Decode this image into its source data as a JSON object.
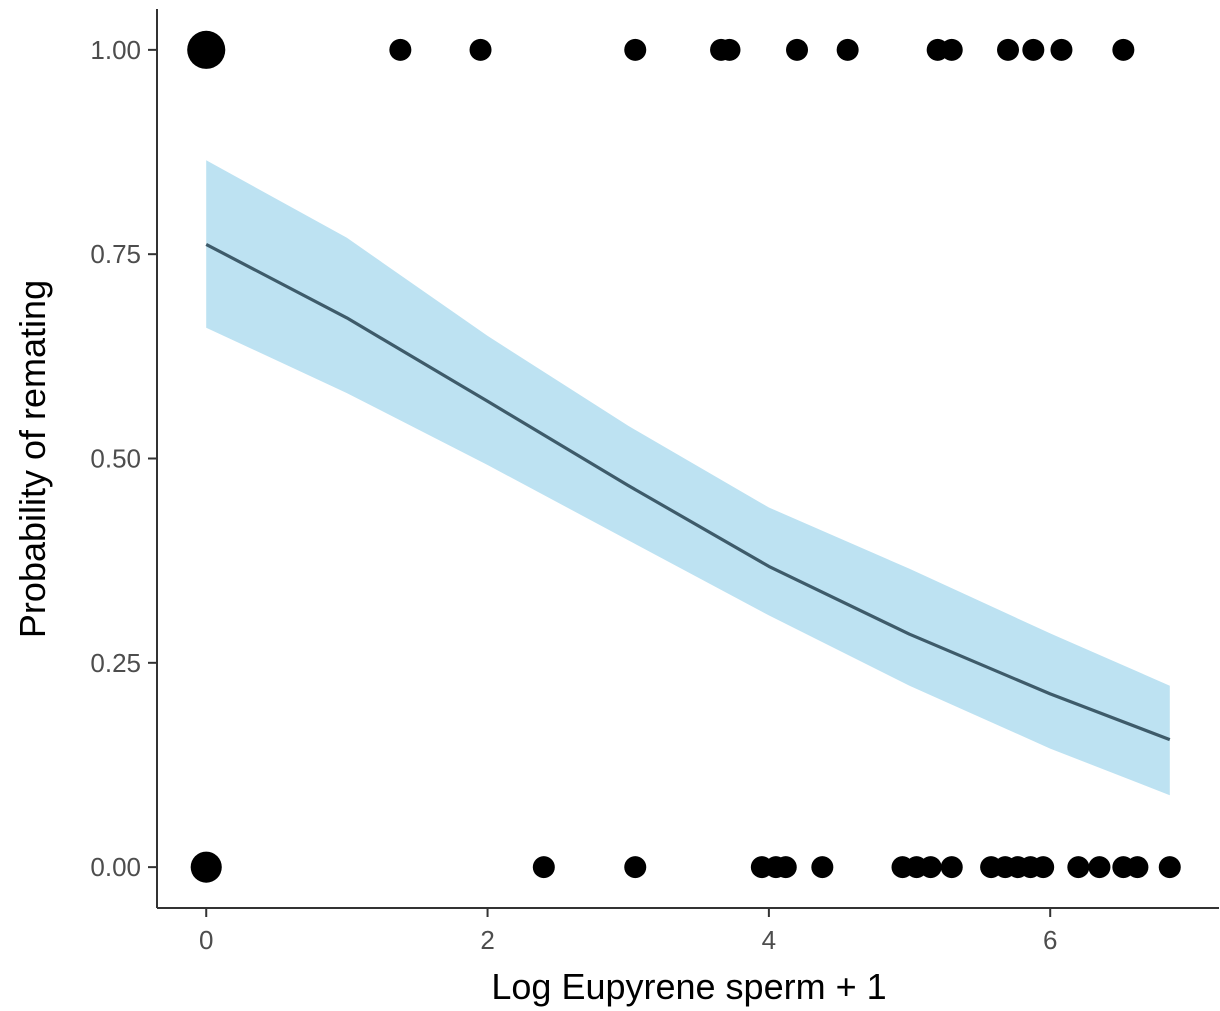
{
  "chart_data": {
    "type": "scatter",
    "title": "",
    "xlabel": "Log Eupyrene sperm + 1",
    "ylabel": "Probability of remating",
    "xlim": [
      -0.35,
      7.2
    ],
    "ylim": [
      -0.05,
      1.05
    ],
    "x_ticks": [
      0,
      2,
      4,
      6
    ],
    "x_tick_labels": [
      "0",
      "2",
      "4",
      "6"
    ],
    "y_ticks": [
      0,
      0.25,
      0.5,
      0.75,
      1
    ],
    "y_tick_labels": [
      "0.00",
      "0.25",
      "0.50",
      "0.75",
      "1.00"
    ],
    "grid": false,
    "legend": "none",
    "colors": {
      "points": "#000000",
      "ribbon": "#bde2f2",
      "line": "#3e5b6a",
      "axis": "#333333"
    },
    "points_remated": [
      {
        "x": 0,
        "y": 1,
        "n": 3
      },
      {
        "x": 1.38,
        "y": 1,
        "n": 1
      },
      {
        "x": 1.95,
        "y": 1,
        "n": 1
      },
      {
        "x": 3.05,
        "y": 1,
        "n": 1
      },
      {
        "x": 3.66,
        "y": 1,
        "n": 1
      },
      {
        "x": 3.72,
        "y": 1,
        "n": 1
      },
      {
        "x": 4.2,
        "y": 1,
        "n": 1
      },
      {
        "x": 4.56,
        "y": 1,
        "n": 1
      },
      {
        "x": 5.2,
        "y": 1,
        "n": 1
      },
      {
        "x": 5.3,
        "y": 1,
        "n": 1
      },
      {
        "x": 5.7,
        "y": 1,
        "n": 1
      },
      {
        "x": 5.88,
        "y": 1,
        "n": 1
      },
      {
        "x": 6.08,
        "y": 1,
        "n": 1
      },
      {
        "x": 6.52,
        "y": 1,
        "n": 1
      }
    ],
    "points_not_remated": [
      {
        "x": 0,
        "y": 0,
        "n": 2
      },
      {
        "x": 2.4,
        "y": 0,
        "n": 1
      },
      {
        "x": 3.05,
        "y": 0,
        "n": 1
      },
      {
        "x": 3.95,
        "y": 0,
        "n": 1
      },
      {
        "x": 4.05,
        "y": 0,
        "n": 1
      },
      {
        "x": 4.12,
        "y": 0,
        "n": 1
      },
      {
        "x": 4.38,
        "y": 0,
        "n": 1
      },
      {
        "x": 4.95,
        "y": 0,
        "n": 1
      },
      {
        "x": 5.05,
        "y": 0,
        "n": 1
      },
      {
        "x": 5.15,
        "y": 0,
        "n": 1
      },
      {
        "x": 5.3,
        "y": 0,
        "n": 1
      },
      {
        "x": 5.58,
        "y": 0,
        "n": 1
      },
      {
        "x": 5.68,
        "y": 0,
        "n": 1
      },
      {
        "x": 5.77,
        "y": 0,
        "n": 1
      },
      {
        "x": 5.86,
        "y": 0,
        "n": 1
      },
      {
        "x": 5.95,
        "y": 0,
        "n": 1
      },
      {
        "x": 6.2,
        "y": 0,
        "n": 1
      },
      {
        "x": 6.35,
        "y": 0,
        "n": 1
      },
      {
        "x": 6.52,
        "y": 0,
        "n": 1
      },
      {
        "x": 6.62,
        "y": 0,
        "n": 1
      },
      {
        "x": 6.85,
        "y": 0,
        "n": 1
      }
    ],
    "fit": {
      "x": [
        0,
        1,
        2,
        3,
        4,
        5,
        6,
        6.85
      ],
      "y": [
        0.762,
        0.672,
        0.57,
        0.467,
        0.368,
        0.285,
        0.212,
        0.156
      ],
      "lower": [
        0.66,
        0.58,
        0.492,
        0.4,
        0.308,
        0.222,
        0.145,
        0.088
      ],
      "upper": [
        0.865,
        0.77,
        0.65,
        0.54,
        0.44,
        0.365,
        0.286,
        0.222
      ]
    }
  }
}
